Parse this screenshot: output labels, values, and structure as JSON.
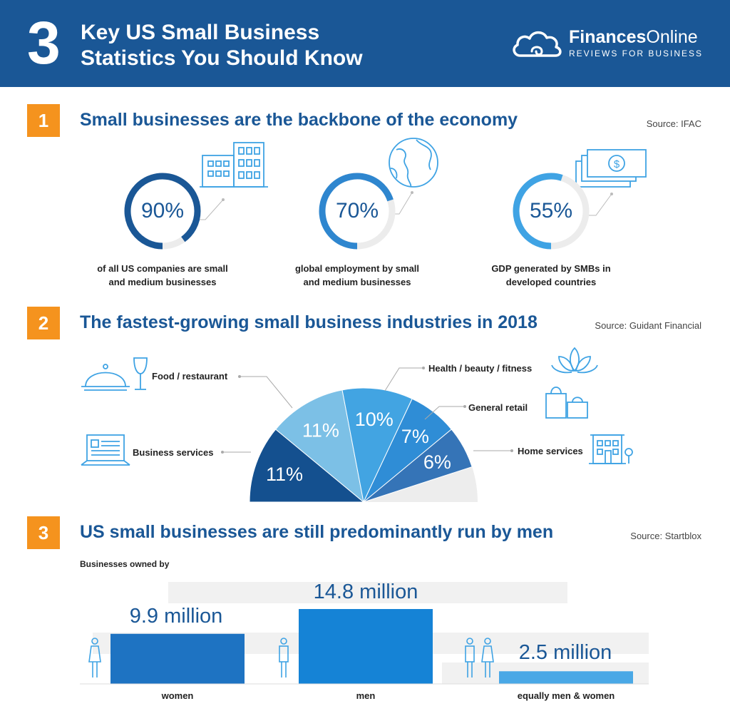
{
  "header": {
    "number": "3",
    "title_line1": "Key US Small Business",
    "title_line2": "Statistics You Should Know",
    "logo_bold": "Finances",
    "logo_regular": "Online",
    "logo_sub": "REVIEWS FOR BUSINESS"
  },
  "sections": [
    {
      "number": "1",
      "title": "Small businesses are the backbone of the economy",
      "source": "Source: IFAC"
    },
    {
      "number": "2",
      "title": "The fastest-growing small business industries in 2018",
      "source": "Source: Guidant Financial"
    },
    {
      "number": "3",
      "title": "US small businesses are still predominantly run by men",
      "source": "Source: Startblox"
    }
  ],
  "stats": [
    {
      "value": 90,
      "label": "90%",
      "caption_line1": "of all US companies are small",
      "caption_line2": "and medium businesses",
      "icon": "buildings-icon",
      "color": "#1a5796"
    },
    {
      "value": 70,
      "label": "70%",
      "caption_line1": "global employment by small",
      "caption_line2": "and medium businesses",
      "icon": "globe-icon",
      "color": "#2e86cf"
    },
    {
      "value": 55,
      "label": "55%",
      "caption_line1": "GDP generated by SMBs in",
      "caption_line2": "developed countries",
      "icon": "money-icon",
      "color": "#3fa3e4"
    }
  ],
  "businesses_owned_label": "Businesses owned by",
  "chart_data": [
    {
      "type": "pie",
      "categories": [
        "Business services",
        "Food / restaurant",
        "Health / beauty / fitness",
        "General retail",
        "Home services"
      ],
      "values": [
        11,
        11,
        10,
        7,
        6
      ],
      "labels": [
        "11%",
        "11%",
        "10%",
        "7%",
        "6%"
      ],
      "colors": [
        "#14508f",
        "#7cc0e6",
        "#42a4e2",
        "#2f8dd6",
        "#3574b7"
      ],
      "icons": [
        "laptop-icon",
        "cloche-icon",
        "lotus-icon",
        "shopping-bags-icon",
        "house-icon"
      ]
    },
    {
      "type": "bar",
      "categories": [
        "women",
        "men",
        "equally men & women"
      ],
      "values": [
        9.9,
        14.8,
        2.5
      ],
      "labels": [
        "9.9 million",
        "14.8 million",
        "2.5 million"
      ],
      "colors": [
        "#1e73c2",
        "#1583d6",
        "#4aa8e6"
      ],
      "ylim": [
        0,
        14.8
      ]
    }
  ]
}
